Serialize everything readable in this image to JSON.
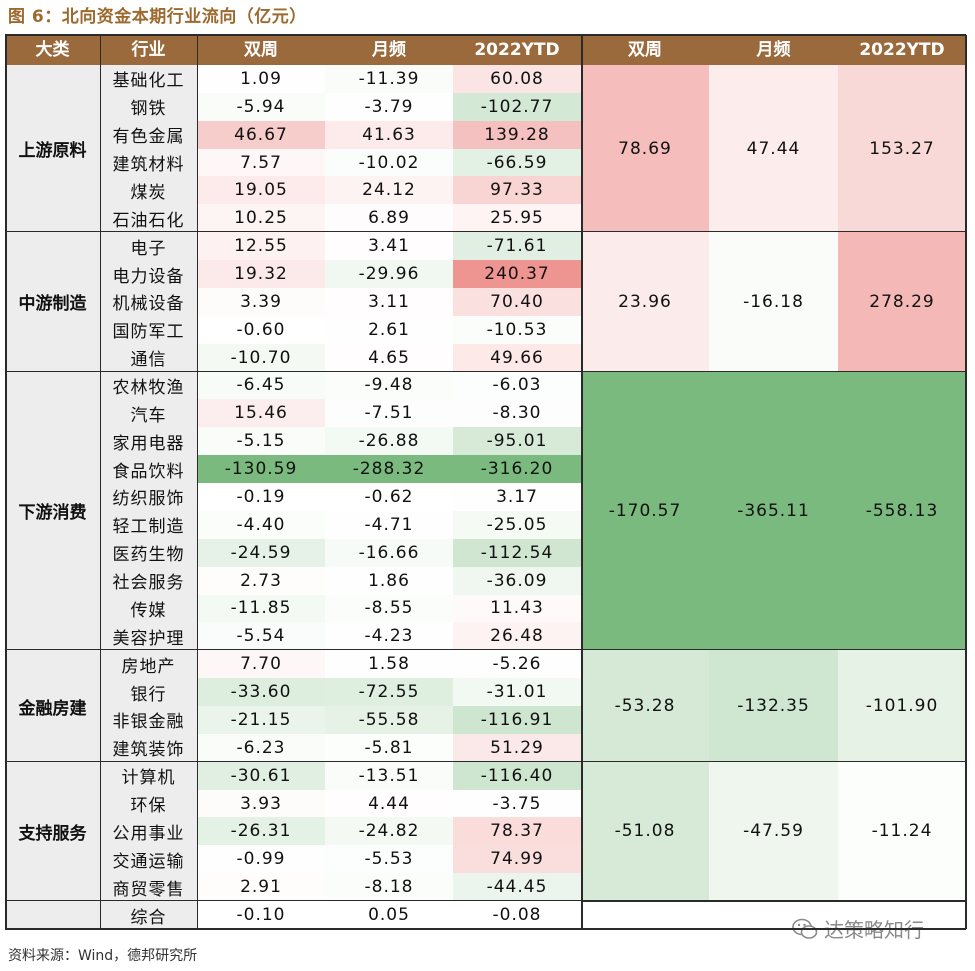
{
  "title": "图 6：北向资金本期行业流向（亿元）",
  "header": {
    "category": "大类",
    "industry": "行业",
    "biweek": "双周",
    "month": "月频",
    "ytd": "2022YTD",
    "g_biweek": "双周",
    "g_month": "月频",
    "g_ytd": "2022YTD"
  },
  "groups": [
    {
      "name": "上游原料",
      "totals": [
        "78.69",
        "47.44",
        "153.27"
      ],
      "rows": [
        [
          "基础化工",
          "1.09",
          "-11.39",
          "60.08"
        ],
        [
          "钢铁",
          "-5.94",
          "-3.79",
          "-102.77"
        ],
        [
          "有色金属",
          "46.67",
          "41.63",
          "139.28"
        ],
        [
          "建筑材料",
          "7.57",
          "-10.02",
          "-66.59"
        ],
        [
          "煤炭",
          "19.05",
          "24.12",
          "97.33"
        ],
        [
          "石油石化",
          "10.25",
          "6.89",
          "25.95"
        ]
      ]
    },
    {
      "name": "中游制造",
      "totals": [
        "23.96",
        "-16.18",
        "278.29"
      ],
      "rows": [
        [
          "电子",
          "12.55",
          "3.41",
          "-71.61"
        ],
        [
          "电力设备",
          "19.32",
          "-29.96",
          "240.37"
        ],
        [
          "机械设备",
          "3.39",
          "3.11",
          "70.40"
        ],
        [
          "国防军工",
          "-0.60",
          "2.61",
          "-10.53"
        ],
        [
          "通信",
          "-10.70",
          "4.65",
          "49.66"
        ]
      ]
    },
    {
      "name": "下游消费",
      "totals": [
        "-170.57",
        "-365.11",
        "-558.13"
      ],
      "rows": [
        [
          "农林牧渔",
          "-6.45",
          "-9.48",
          "-6.03"
        ],
        [
          "汽车",
          "15.46",
          "-7.51",
          "-8.30"
        ],
        [
          "家用电器",
          "-5.15",
          "-26.88",
          "-95.01"
        ],
        [
          "食品饮料",
          "-130.59",
          "-288.32",
          "-316.20"
        ],
        [
          "纺织服饰",
          "-0.19",
          "-0.62",
          "3.17"
        ],
        [
          "轻工制造",
          "-4.40",
          "-4.71",
          "-25.05"
        ],
        [
          "医药生物",
          "-24.59",
          "-16.66",
          "-112.54"
        ],
        [
          "社会服务",
          "2.73",
          "1.86",
          "-36.09"
        ],
        [
          "传媒",
          "-11.85",
          "-8.55",
          "11.43"
        ],
        [
          "美容护理",
          "-5.54",
          "-4.23",
          "26.48"
        ]
      ]
    },
    {
      "name": "金融房建",
      "totals": [
        "-53.28",
        "-132.35",
        "-101.90"
      ],
      "rows": [
        [
          "房地产",
          "7.70",
          "1.58",
          "-5.26"
        ],
        [
          "银行",
          "-33.60",
          "-72.55",
          "-31.01"
        ],
        [
          "非银金融",
          "-21.15",
          "-55.58",
          "-116.91"
        ],
        [
          "建筑装饰",
          "-6.23",
          "-5.81",
          "51.29"
        ]
      ]
    },
    {
      "name": "支持服务",
      "totals": [
        "-51.08",
        "-47.59",
        "-11.24"
      ],
      "rows": [
        [
          "计算机",
          "-30.61",
          "-13.51",
          "-116.40"
        ],
        [
          "环保",
          "3.93",
          "4.44",
          "-3.75"
        ],
        [
          "公用事业",
          "-26.31",
          "-24.82",
          "78.37"
        ],
        [
          "交通运输",
          "-0.99",
          "-5.53",
          "74.99"
        ],
        [
          "商贸零售",
          "2.91",
          "-8.18",
          "-44.45"
        ]
      ]
    },
    {
      "name": "",
      "totals": [
        "",
        "",
        ""
      ],
      "rows": [
        [
          "综合",
          "-0.10",
          "0.05",
          "-0.08"
        ]
      ]
    }
  ],
  "colors": {
    "header_bg": "#9a6a3c",
    "title_color": "#9c6a2f",
    "pos_max": "#e9736f",
    "neg_max": "#7bba7e"
  },
  "source": "资料来源：Wind，德邦研究所",
  "watermark": "达策略知行"
}
